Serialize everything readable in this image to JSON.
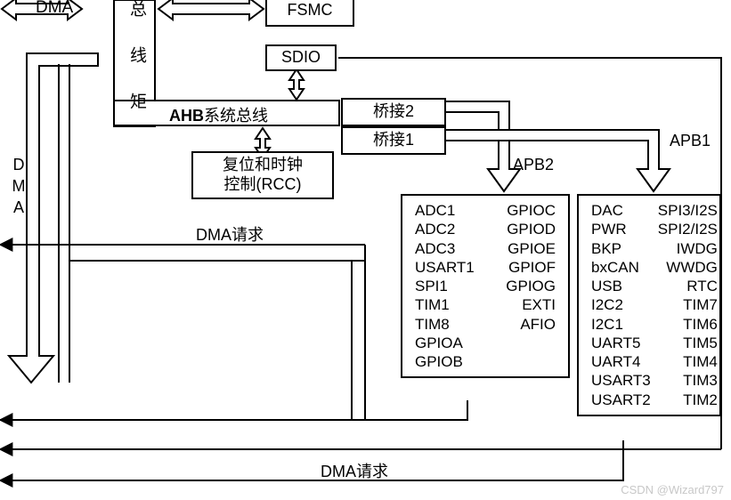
{
  "labels": {
    "dma_top": "DMA",
    "dma_side": "DMA",
    "bus_matrix": "总 线 矩",
    "fsmc": "FSMC",
    "sdio": "SDIO",
    "ahb": "AHB系统总线",
    "bridge2": "桥接2",
    "bridge1": "桥接1",
    "rcc": "复位和时钟\n控制(RCC)",
    "apb2": "APB2",
    "apb1": "APB1",
    "dma_req1": "DMA请求",
    "dma_req2": "DMA请求"
  },
  "apb2_peripherals": {
    "col1": [
      "ADC1",
      "ADC2",
      "ADC3",
      "USART1",
      "SPI1",
      "TIM1",
      "TIM8",
      "GPIOA",
      "GPIOB"
    ],
    "col2": [
      "GPIOC",
      "GPIOD",
      "GPIOE",
      "GPIOF",
      "GPIOG",
      "EXTI",
      "AFIO",
      "",
      ""
    ]
  },
  "apb1_peripherals": {
    "col1": [
      "DAC",
      "PWR",
      "BKP",
      "bxCAN",
      "USB",
      "I2C2",
      "I2C1",
      "UART5",
      "UART4",
      "USART3",
      "USART2"
    ],
    "col2": [
      "SPI3/I2S",
      "SPI2/I2S",
      "IWDG",
      "WWDG",
      "RTC",
      "TIM7",
      "TIM6",
      "TIM5",
      "TIM4",
      "TIM3",
      "TIM2"
    ]
  },
  "style": {
    "stroke": "#000000",
    "fill": "#ffffff",
    "stroke_width": 2
  },
  "watermark": "CSDN @Wizard797"
}
